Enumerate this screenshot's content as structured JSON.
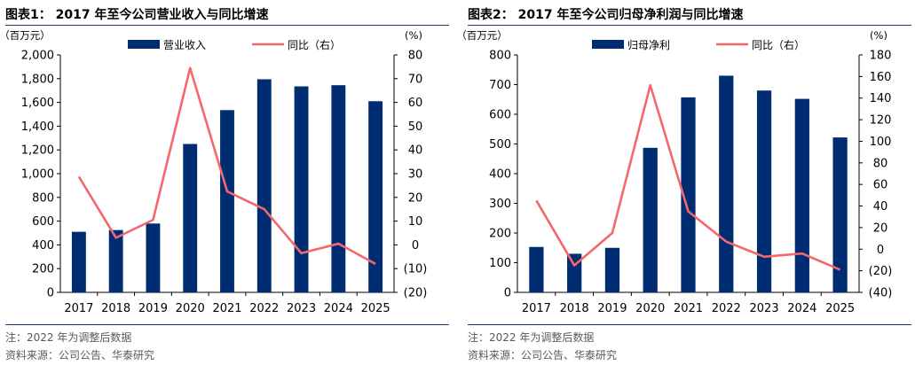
{
  "chart_data": [
    {
      "type": "bar",
      "title": "图表1： 2017 年至今公司营业收入与同比增速",
      "left_unit": "（百万元）",
      "right_unit": "(%)",
      "categories": [
        "2017",
        "2018",
        "2019",
        "2020",
        "2021",
        "2022",
        "2023",
        "2024",
        "2025"
      ],
      "series": [
        {
          "name": "营业收入",
          "type": "bar",
          "axis": "left",
          "color": "#002d72",
          "values": [
            510,
            525,
            580,
            1250,
            1535,
            1795,
            1735,
            1745,
            1610
          ]
        },
        {
          "name": "同比（右）",
          "type": "line",
          "axis": "right",
          "color": "#f4676b",
          "values": [
            28.7,
            3.0,
            10.5,
            74.5,
            22.5,
            15.0,
            -3.5,
            0.5,
            -8.0
          ]
        }
      ],
      "yleft": {
        "lim": [
          0,
          2000
        ],
        "ticks": [
          "0",
          "200",
          "400",
          "600",
          "800",
          "1,000",
          "1,200",
          "1,400",
          "1,600",
          "1,800",
          "2,000"
        ]
      },
      "yright": {
        "lim": [
          -20,
          80
        ],
        "ticks": [
          "(20)",
          "(10)",
          "0",
          "10",
          "20",
          "30",
          "40",
          "50",
          "60",
          "70",
          "80"
        ]
      },
      "legend": "top",
      "notes": [
        "注：2022 年为调整后数据",
        "资料来源：公司公告、华泰研究"
      ]
    },
    {
      "type": "bar",
      "title": "图表2： 2017 年至今公司归母净利润与同比增速",
      "left_unit": "（百万元）",
      "right_unit": "(%)",
      "categories": [
        "2017",
        "2018",
        "2019",
        "2020",
        "2021",
        "2022",
        "2023",
        "2024",
        "2025"
      ],
      "series": [
        {
          "name": "归母净利",
          "type": "bar",
          "axis": "left",
          "color": "#002d72",
          "values": [
            153,
            130,
            150,
            487,
            657,
            730,
            680,
            652,
            522
          ]
        },
        {
          "name": "同比（右）",
          "type": "line",
          "axis": "right",
          "color": "#f4676b",
          "values": [
            45,
            -15,
            15,
            152,
            35,
            7,
            -7,
            -4,
            -19
          ]
        }
      ],
      "yleft": {
        "lim": [
          0,
          800
        ],
        "ticks": [
          "0",
          "100",
          "200",
          "300",
          "400",
          "500",
          "600",
          "700",
          "800"
        ]
      },
      "yright": {
        "lim": [
          -40,
          180
        ],
        "ticks": [
          "(40)",
          "(20)",
          "0",
          "20",
          "40",
          "60",
          "80",
          "100",
          "120",
          "140",
          "160",
          "180"
        ]
      },
      "legend": "top",
      "notes": [
        "注：2022 年为调整后数据",
        "资料来源：公司公告、华泰研究"
      ]
    }
  ]
}
